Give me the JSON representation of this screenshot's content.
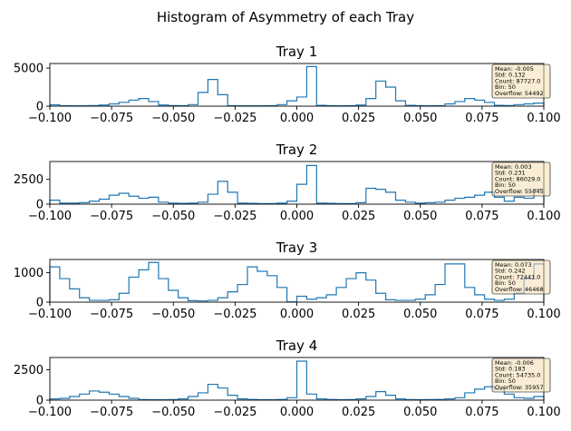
{
  "figure": {
    "suptitle": "Histogram of Asymmetry of each Tray",
    "line_color": "#1f77b4",
    "stats_box_fill": "#f5deb3",
    "stats_box_edge": "#000000"
  },
  "chart_data": [
    {
      "type": "histogram",
      "title": "Tray 1",
      "xlim": [
        -0.1,
        0.1
      ],
      "ylim": [
        0,
        5600
      ],
      "xticks": [
        -0.1,
        -0.075,
        -0.05,
        -0.025,
        0.0,
        0.025,
        0.05,
        0.075,
        0.1
      ],
      "xtick_labels": [
        "−0.100",
        "−0.075",
        "−0.050",
        "−0.025",
        "0.000",
        "0.025",
        "0.050",
        "0.075",
        "0.100"
      ],
      "yticks": [
        0,
        5000
      ],
      "ytick_labels": [
        "0",
        "5000"
      ],
      "bins": 50,
      "counts": [
        180,
        60,
        40,
        50,
        80,
        150,
        300,
        500,
        800,
        1000,
        600,
        150,
        80,
        60,
        200,
        1800,
        3500,
        1500,
        60,
        50,
        50,
        50,
        60,
        200,
        700,
        1200,
        5200,
        100,
        60,
        50,
        60,
        150,
        1000,
        3300,
        2500,
        700,
        100,
        60,
        50,
        60,
        300,
        600,
        1000,
        800,
        500,
        100,
        80,
        200,
        300,
        400
      ],
      "stats": [
        "Mean: -0.005",
        "Std: 0.132",
        "Count: 87727.0",
        "Bin: 50",
        "Overflow: 54492"
      ]
    },
    {
      "type": "histogram",
      "title": "Tray 2",
      "xlim": [
        -0.1,
        0.1
      ],
      "ylim": [
        0,
        4300
      ],
      "xticks": [
        -0.1,
        -0.075,
        -0.05,
        -0.025,
        0.0,
        0.025,
        0.05,
        0.075,
        0.1
      ],
      "xtick_labels": [
        "−0.100",
        "−0.075",
        "−0.050",
        "−0.025",
        "0.000",
        "0.025",
        "0.050",
        "0.075",
        "0.100"
      ],
      "yticks": [
        0,
        2500
      ],
      "ytick_labels": [
        "0",
        "2500"
      ],
      "bins": 50,
      "counts": [
        400,
        100,
        100,
        150,
        300,
        500,
        900,
        1100,
        800,
        600,
        700,
        200,
        100,
        80,
        100,
        200,
        1000,
        2300,
        1200,
        100,
        80,
        60,
        60,
        100,
        300,
        2000,
        3900,
        100,
        80,
        60,
        60,
        150,
        1600,
        1500,
        1200,
        400,
        200,
        100,
        150,
        200,
        400,
        600,
        700,
        900,
        1200,
        700,
        300,
        700,
        600,
        1500
      ],
      "stats": [
        "Mean: 0.003",
        "Std: 0.231",
        "Count: 86029.0",
        "Bin: 50",
        "Overflow: 55045"
      ]
    },
    {
      "type": "histogram",
      "title": "Tray 3",
      "xlim": [
        -0.1,
        0.1
      ],
      "ylim": [
        0,
        1450
      ],
      "xticks": [
        -0.1,
        -0.075,
        -0.05,
        -0.025,
        0.0,
        0.025,
        0.05,
        0.075,
        0.1
      ],
      "xtick_labels": [
        "−0.100",
        "−0.075",
        "−0.050",
        "−0.025",
        "0.000",
        "0.025",
        "0.050",
        "0.075",
        "0.100"
      ],
      "yticks": [
        0,
        1000
      ],
      "ytick_labels": [
        "0",
        "1000"
      ],
      "bins": 50,
      "counts": [
        1200,
        800,
        450,
        150,
        60,
        60,
        80,
        300,
        850,
        1100,
        1350,
        800,
        400,
        150,
        50,
        40,
        60,
        150,
        350,
        600,
        1200,
        1050,
        900,
        500,
        10,
        200,
        100,
        150,
        250,
        500,
        800,
        1000,
        750,
        300,
        80,
        60,
        60,
        100,
        250,
        600,
        1300,
        1300,
        500,
        250,
        100,
        60,
        100,
        300,
        800,
        1300
      ],
      "stats": [
        "Mean: 0.073",
        "Std: 0.242",
        "Count: 72441.0",
        "Bin: 50",
        "Overflow: 46468"
      ]
    },
    {
      "type": "histogram",
      "title": "Tray 4",
      "xlim": [
        -0.1,
        0.1
      ],
      "ylim": [
        0,
        3500
      ],
      "xticks": [
        -0.1,
        -0.075,
        -0.05,
        -0.025,
        0.0,
        0.025,
        0.05,
        0.075,
        0.1
      ],
      "xtick_labels": [
        "−0.100",
        "−0.075",
        "−0.050",
        "−0.025",
        "0.000",
        "0.025",
        "0.050",
        "0.075",
        "0.100"
      ],
      "yticks": [
        0,
        2500
      ],
      "ytick_labels": [
        "0",
        "2500"
      ],
      "bins": 50,
      "counts": [
        100,
        150,
        300,
        500,
        750,
        650,
        500,
        300,
        150,
        50,
        40,
        30,
        50,
        100,
        300,
        600,
        1300,
        1000,
        400,
        100,
        60,
        40,
        40,
        60,
        200,
        3200,
        500,
        100,
        60,
        40,
        50,
        100,
        300,
        700,
        400,
        100,
        50,
        40,
        50,
        60,
        100,
        200,
        600,
        900,
        1100,
        900,
        500,
        200,
        150,
        300
      ],
      "stats": [
        "Mean: -0.006",
        "Std: 0.183",
        "Count: 54735.0",
        "Bin: 50",
        "Overflow: 35957"
      ]
    }
  ]
}
